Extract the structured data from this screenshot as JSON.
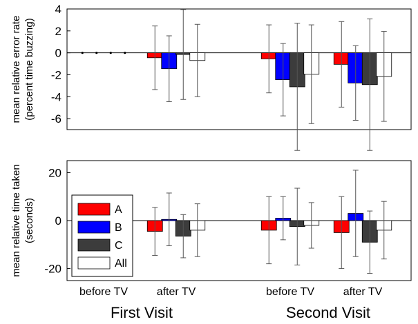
{
  "chart_data": [
    {
      "type": "bar",
      "ylabel": [
        "mean relative error rate",
        "(percent time buzzing)"
      ],
      "ylim": [
        -7,
        4
      ],
      "yticks": [
        4,
        2,
        0,
        -2,
        -4,
        -6
      ],
      "grid": false,
      "categories": [
        "before TV",
        "after TV",
        "before TV",
        "after TV"
      ],
      "series": [
        {
          "name": "A",
          "color": "#ff0000",
          "values": [
            0,
            -0.45,
            -0.55,
            -1.05
          ],
          "err": [
            0,
            2.9,
            3.1,
            3.9
          ]
        },
        {
          "name": "B",
          "color": "#0000ff",
          "values": [
            0,
            -1.45,
            -2.45,
            -2.75
          ],
          "err": [
            0,
            3.0,
            3.3,
            3.4
          ]
        },
        {
          "name": "C",
          "color": "#3c3c3c",
          "values": [
            0,
            -0.15,
            -3.1,
            -2.9
          ],
          "err": [
            0,
            4.1,
            5.8,
            6.0
          ]
        },
        {
          "name": "All",
          "color": "#ffffff",
          "values": [
            0,
            -0.7,
            -1.95,
            -2.15
          ],
          "err": [
            0,
            3.3,
            4.5,
            4.1
          ]
        }
      ]
    },
    {
      "type": "bar",
      "ylabel": [
        "mean relative time taken",
        "(seconds)"
      ],
      "ylim": [
        -25,
        25
      ],
      "yticks": [
        20,
        0,
        -20
      ],
      "grid": false,
      "legend": {
        "position": "left",
        "entries": [
          "A",
          "B",
          "C",
          "All"
        ]
      },
      "categories": [
        "before TV",
        "after TV",
        "before TV",
        "after TV"
      ],
      "series": [
        {
          "name": "A",
          "color": "#ff0000",
          "values": [
            0,
            -4.5,
            -4,
            -5
          ],
          "err": [
            0,
            10,
            14,
            15
          ]
        },
        {
          "name": "B",
          "color": "#0000ff",
          "values": [
            0,
            0.5,
            1,
            3
          ],
          "err": [
            0,
            11,
            9,
            18
          ]
        },
        {
          "name": "C",
          "color": "#3c3c3c",
          "values": [
            0,
            -6.5,
            -2.5,
            -9
          ],
          "err": [
            0,
            9,
            16,
            13
          ]
        },
        {
          "name": "All",
          "color": "#ffffff",
          "values": [
            0,
            -4,
            -2,
            -4
          ],
          "err": [
            0,
            11,
            9.5,
            12
          ]
        }
      ]
    }
  ],
  "group_labels": [
    "First Visit",
    "Second Visit"
  ]
}
